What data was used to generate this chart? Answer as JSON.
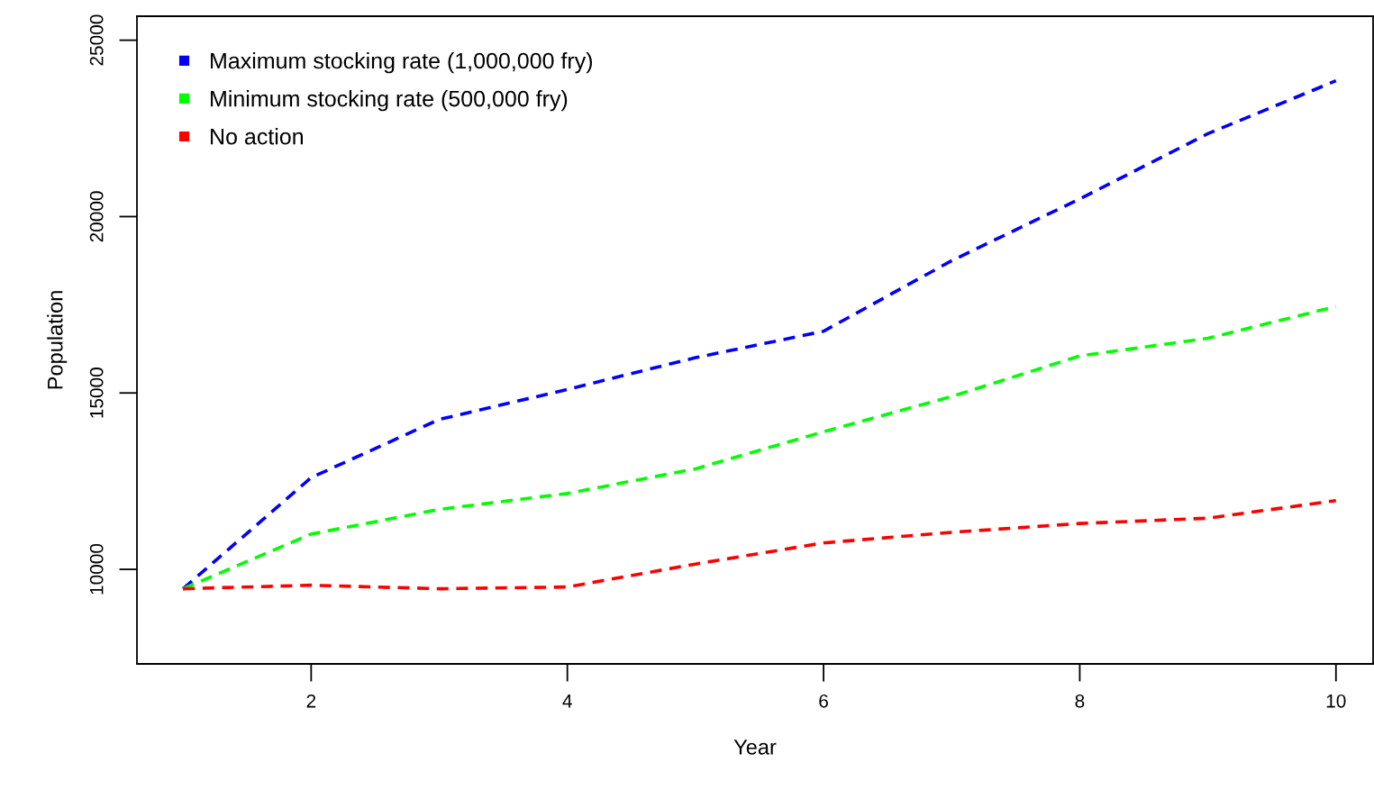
{
  "chart_data": {
    "type": "line",
    "xlabel": "Year",
    "ylabel": "Population",
    "x": [
      1,
      2,
      3,
      4,
      5,
      6,
      7,
      8,
      9,
      10
    ],
    "series": [
      {
        "name": "Maximum stocking rate (1,000,000 fry)",
        "color": "#0000ff",
        "values": [
          9450,
          12600,
          14250,
          15100,
          16000,
          16750,
          18750,
          20500,
          22350,
          23850
        ]
      },
      {
        "name": "Minimum stocking rate (500,000 fry)",
        "color": "#00ff00",
        "values": [
          9450,
          11000,
          11700,
          12150,
          12850,
          13900,
          14900,
          16050,
          16550,
          17450
        ]
      },
      {
        "name": "No action",
        "color": "#ff0000",
        "values": [
          9450,
          9550,
          9450,
          9500,
          10150,
          10750,
          11050,
          11300,
          11450,
          11950
        ]
      }
    ],
    "xlim": [
      0.64,
      10.29
    ],
    "ylim": [
      7320,
      25680
    ],
    "xticks": [
      2,
      4,
      6,
      8,
      10
    ],
    "yticks": [
      10000,
      15000,
      20000,
      25000
    ],
    "line_style": "dashed",
    "legend": "top left",
    "grid": false
  }
}
